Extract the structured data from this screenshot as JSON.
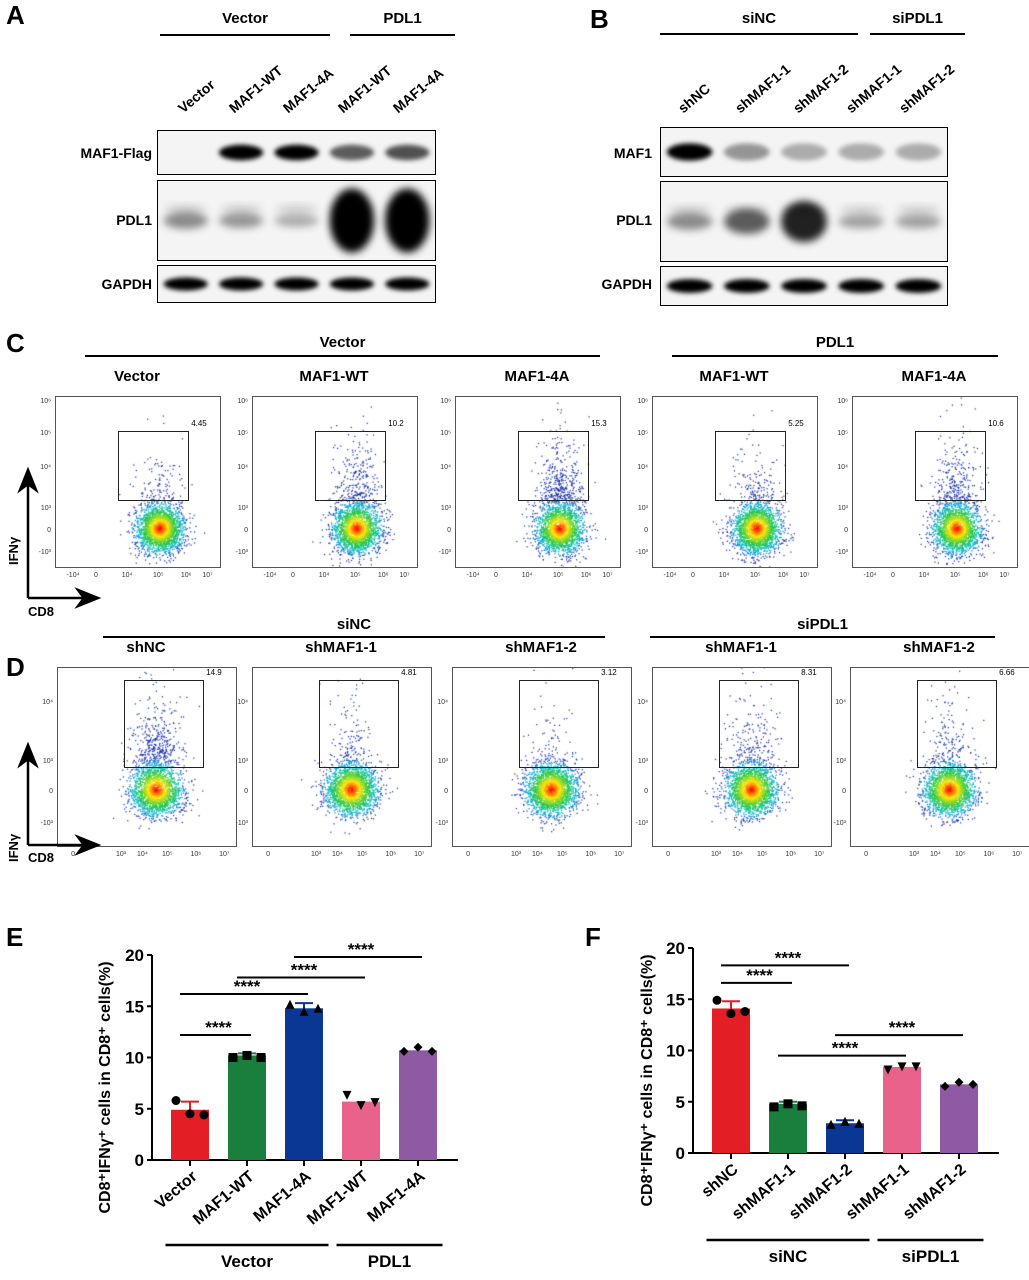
{
  "panels": {
    "A": "A",
    "B": "B",
    "C": "C",
    "D": "D",
    "E": "E",
    "F": "F"
  },
  "blot_A": {
    "groups": [
      "Vector",
      "PDL1"
    ],
    "lanes": [
      "Vector",
      "MAF1-WT",
      "MAF1-4A",
      "MAF1-WT",
      "MAF1-4A"
    ],
    "rows": [
      {
        "label": "MAF1-Flag",
        "band_intensity": [
          0,
          1,
          0.95,
          0.5,
          0.55
        ]
      },
      {
        "label": "PDL1",
        "band_intensity": [
          0.3,
          0.25,
          0.15,
          1,
          1
        ]
      },
      {
        "label": "GAPDH",
        "band_intensity": [
          1,
          1,
          1,
          1,
          1
        ]
      }
    ]
  },
  "blot_B": {
    "groups": [
      "siNC",
      "siPDL1"
    ],
    "lanes": [
      "shNC",
      "shMAF1-1",
      "shMAF1-2",
      "shMAF1-1",
      "shMAF1-2"
    ],
    "rows": [
      {
        "label": "MAF1",
        "band_intensity": [
          1,
          0.25,
          0.15,
          0.15,
          0.15
        ]
      },
      {
        "label": "PDL1",
        "band_intensity": [
          0.3,
          0.5,
          0.75,
          0.2,
          0.2
        ]
      },
      {
        "label": "GAPDH",
        "band_intensity": [
          1,
          1,
          1,
          1,
          1
        ]
      }
    ]
  },
  "flow_C": {
    "groups": [
      "Vector",
      "PDL1"
    ],
    "x_axis": "CD8",
    "y_axis": "IFNγ",
    "y_ticks": [
      "10⁶",
      "10⁵",
      "10⁴",
      "10³",
      "0",
      "-10³"
    ],
    "x_ticks": [
      "-10⁴",
      "0",
      "10⁴",
      "10⁵",
      "10⁶",
      "10⁷"
    ],
    "plots": [
      {
        "title": "Vector",
        "gate_percent": "4.45"
      },
      {
        "title": "MAF1-WT",
        "gate_percent": "10.2"
      },
      {
        "title": "MAF1-4A",
        "gate_percent": "15.3"
      },
      {
        "title": "MAF1-WT",
        "gate_percent": "5.25"
      },
      {
        "title": "MAF1-4A",
        "gate_percent": "10.6"
      }
    ]
  },
  "flow_D": {
    "groups": [
      "siNC",
      "siPDL1"
    ],
    "x_axis": "CD8",
    "y_axis": "IFNγ",
    "y_ticks": [
      "10⁴",
      "10³",
      "0",
      "-10³"
    ],
    "x_ticks": [
      "0",
      "10³",
      "10⁴",
      "10⁵",
      "10⁶",
      "10⁷"
    ],
    "plots": [
      {
        "title": "shNC",
        "gate_percent": "14.9"
      },
      {
        "title": "shMAF1-1",
        "gate_percent": "4.81"
      },
      {
        "title": "shMAF1-2",
        "gate_percent": "3.12"
      },
      {
        "title": "shMAF1-1",
        "gate_percent": "8.31"
      },
      {
        "title": "shMAF1-2",
        "gate_percent": "6.66"
      }
    ]
  },
  "chart_data": [
    {
      "type": "bar",
      "ylabel": "CD8⁺IFNγ⁺ cells in CD8⁺ cells(%)",
      "ylim": [
        0,
        20
      ],
      "yticks": [
        "0",
        "5",
        "10",
        "15",
        "20"
      ],
      "categories": [
        "Vector",
        "MAF1-WT",
        "MAF1-4A",
        "MAF1-WT",
        "MAF1-4A"
      ],
      "groups": [
        {
          "label": "Vector",
          "span": [
            0,
            2
          ]
        },
        {
          "label": "PDL1",
          "span": [
            3,
            4
          ]
        }
      ],
      "values": [
        4.9,
        10.2,
        14.8,
        5.7,
        10.7
      ],
      "errors": [
        0.8,
        0.2,
        0.5,
        0.6,
        0.3
      ],
      "points": [
        [
          5.8,
          4.5,
          4.4
        ],
        [
          10.0,
          10.2,
          10.0
        ],
        [
          15.2,
          14.5,
          14.8
        ],
        [
          6.3,
          5.3,
          5.6
        ],
        [
          10.6,
          11.0,
          10.6
        ]
      ],
      "markers": [
        "circle",
        "square",
        "triangle-up",
        "triangle-down",
        "diamond"
      ],
      "colors": [
        "#e31e24",
        "#1a7f3c",
        "#0a3694",
        "#e8628b",
        "#9059a3"
      ],
      "significance": [
        {
          "from": 0,
          "to": 1,
          "y": 12.2,
          "label": "****"
        },
        {
          "from": 0,
          "to": 2,
          "y": 16.2,
          "label": "****"
        },
        {
          "from": 1,
          "to": 3,
          "y": 17.8,
          "label": "****"
        },
        {
          "from": 2,
          "to": 4,
          "y": 19.8,
          "label": "****"
        }
      ]
    },
    {
      "type": "bar",
      "ylabel": "CD8⁺IFNγ⁺ cells in CD8⁺ cells(%)",
      "ylim": [
        0,
        20
      ],
      "yticks": [
        "0",
        "5",
        "10",
        "15",
        "20"
      ],
      "categories": [
        "shNC",
        "shMAF1-1",
        "shMAF1-2",
        "shMAF1-1",
        "shMAF1-2"
      ],
      "groups": [
        {
          "label": "siNC",
          "span": [
            0,
            2
          ]
        },
        {
          "label": "siPDL1",
          "span": [
            3,
            4
          ]
        }
      ],
      "values": [
        14.1,
        4.8,
        2.9,
        8.4,
        6.7
      ],
      "errors": [
        0.7,
        0.2,
        0.3,
        0.2,
        0.3
      ],
      "points": [
        [
          14.9,
          13.6,
          13.8
        ],
        [
          4.5,
          4.8,
          4.6
        ],
        [
          2.8,
          3.1,
          2.9
        ],
        [
          8.1,
          8.4,
          8.4
        ],
        [
          6.5,
          6.9,
          6.7
        ]
      ],
      "markers": [
        "circle",
        "square",
        "triangle-up",
        "triangle-down",
        "diamond"
      ],
      "colors": [
        "#e31e24",
        "#1a7f3c",
        "#0a3694",
        "#e8628b",
        "#9059a3"
      ],
      "significance": [
        {
          "from": 0,
          "to": 1,
          "y": 16.6,
          "label": "****"
        },
        {
          "from": 0,
          "to": 2,
          "y": 18.3,
          "label": "****"
        },
        {
          "from": 1,
          "to": 3,
          "y": 9.5,
          "label": "****"
        },
        {
          "from": 2,
          "to": 4,
          "y": 11.5,
          "label": "****"
        }
      ]
    }
  ]
}
